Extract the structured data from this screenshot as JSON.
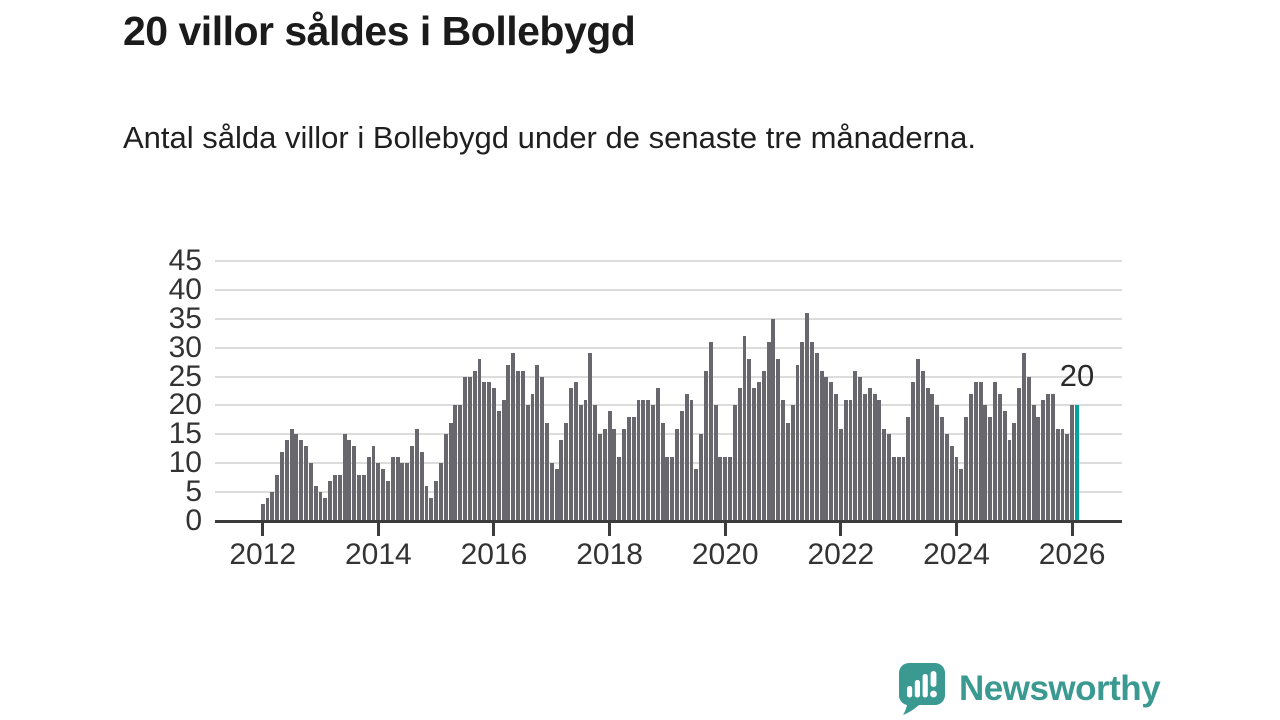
{
  "header": {
    "title": "20 villor såldes i Bollebygd",
    "subtitle": "Antal sålda villor i Bollebygd under de senaste tre månaderna."
  },
  "chart_data": {
    "type": "bar",
    "title": "20 villor såldes i Bollebygd",
    "subtitle": "Antal sålda villor i Bollebygd under de senaste tre månaderna.",
    "x_start": "2012-01",
    "x_frequency": "monthly",
    "values": [
      3,
      4,
      5,
      8,
      12,
      14,
      16,
      15,
      14,
      13,
      10,
      6,
      5,
      4,
      7,
      8,
      8,
      15,
      14,
      13,
      8,
      8,
      11,
      13,
      10,
      9,
      7,
      11,
      11,
      10,
      10,
      13,
      16,
      12,
      6,
      4,
      7,
      10,
      15,
      17,
      20,
      20,
      25,
      25,
      26,
      28,
      24,
      24,
      23,
      19,
      21,
      27,
      29,
      26,
      26,
      20,
      22,
      27,
      25,
      17,
      10,
      9,
      14,
      17,
      23,
      24,
      20,
      21,
      29,
      20,
      15,
      16,
      19,
      16,
      11,
      16,
      18,
      18,
      21,
      21,
      21,
      20,
      23,
      17,
      11,
      11,
      16,
      19,
      22,
      21,
      9,
      15,
      26,
      31,
      20,
      11,
      11,
      11,
      20,
      23,
      32,
      28,
      23,
      24,
      26,
      31,
      35,
      28,
      21,
      17,
      20,
      27,
      31,
      36,
      31,
      29,
      26,
      25,
      24,
      22,
      16,
      21,
      21,
      26,
      25,
      22,
      23,
      22,
      21,
      16,
      15,
      11,
      11,
      11,
      18,
      24,
      28,
      26,
      23,
      22,
      20,
      18,
      15,
      13,
      11,
      9,
      18,
      22,
      24,
      24,
      20,
      18,
      24,
      22,
      19,
      14,
      17,
      23,
      29,
      25,
      20,
      18,
      21,
      22,
      22,
      16,
      16,
      15,
      20,
      20
    ],
    "highlight_last_value": true,
    "last_value_label": "20",
    "y_ticks": [
      0,
      5,
      10,
      15,
      20,
      25,
      30,
      35,
      40,
      45
    ],
    "ylim": [
      0,
      45
    ],
    "x_tick_labels": [
      "2012",
      "2014",
      "2016",
      "2018",
      "2020",
      "2022",
      "2024",
      "2026"
    ],
    "x_tick_every_months": 24,
    "grid": "horizontal",
    "legend": "none",
    "bar_color": "#67676d",
    "highlight_color": "#00a39c",
    "axis_color": "#3c3c3c",
    "gridline_color": "#dcdcdc",
    "label_color": "#333333"
  },
  "footer": {
    "logo_text": "Newsworthy",
    "logo_color": "#3a9a92"
  }
}
